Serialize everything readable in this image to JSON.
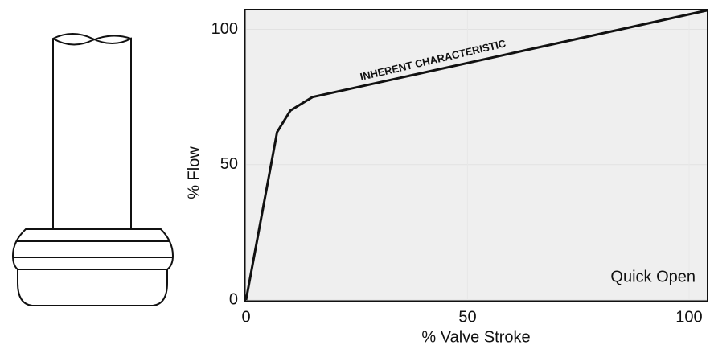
{
  "chart_data": {
    "type": "line",
    "x": [
      0,
      7,
      10,
      15,
      104
    ],
    "series": [
      {
        "name": "Quick Open",
        "color": "#111111",
        "values": [
          0,
          62,
          70,
          75,
          107
        ]
      }
    ],
    "xlabel": "% Valve Stroke",
    "ylabel": "% Flow",
    "annotations": [
      "INHERENT CHARACTERISTIC"
    ],
    "xlim": [
      0,
      104
    ],
    "ylim": [
      0,
      107
    ],
    "xticks": [
      0,
      50,
      100
    ],
    "yticks": [
      0,
      50,
      100
    ],
    "grid": true
  }
}
